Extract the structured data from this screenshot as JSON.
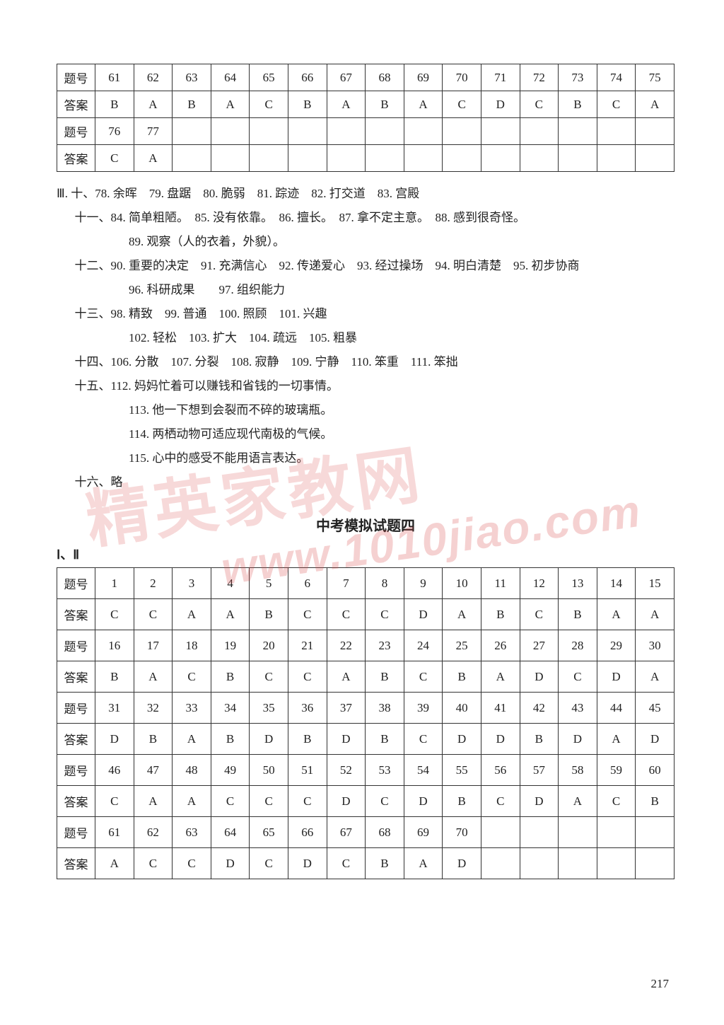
{
  "labels": {
    "question_no": "题号",
    "answer": "答案"
  },
  "table1": {
    "row1_nums": [
      "61",
      "62",
      "63",
      "64",
      "65",
      "66",
      "67",
      "68",
      "69",
      "70",
      "71",
      "72",
      "73",
      "74",
      "75"
    ],
    "row1_ans": [
      "B",
      "A",
      "B",
      "A",
      "C",
      "B",
      "A",
      "B",
      "A",
      "C",
      "D",
      "C",
      "B",
      "C",
      "A"
    ],
    "row2_nums": [
      "76",
      "77",
      "",
      "",
      "",
      "",
      "",
      "",
      "",
      "",
      "",
      "",
      "",
      "",
      ""
    ],
    "row2_ans": [
      "C",
      "A",
      "",
      "",
      "",
      "",
      "",
      "",
      "",
      "",
      "",
      "",
      "",
      "",
      ""
    ]
  },
  "text_block": {
    "l1": "Ⅲ. 十、78. 余晖　79. 盘踞　80. 脆弱　81. 踪迹　82. 打交道　83. 宫殿",
    "l2": "十一、84. 简单粗陋。　85. 没有依靠。　86. 擅长。　87. 拿不定主意。　88. 感到很奇怪。",
    "l3": "89. 观察（人的衣着，外貌）。",
    "l4": "十二、90. 重要的决定　91. 充满信心　92. 传递爱心　93. 经过操场　94. 明白清楚　95. 初步协商",
    "l5": "96. 科研成果　　97. 组织能力",
    "l6": "十三、98. 精致　99. 普通　100. 照顾　101. 兴趣",
    "l7": "102. 轻松　103. 扩大　104. 疏远　105. 粗暴",
    "l8": "十四、106. 分散　107. 分裂　108. 寂静　109. 宁静　110. 笨重　111. 笨拙",
    "l9": "十五、112. 妈妈忙着可以赚钱和省钱的一切事情。",
    "l10": "113. 他一下想到会裂而不碎的玻璃瓶。",
    "l11": "114. 两栖动物可适应现代南极的气候。",
    "l12": "115. 心中的感受不能用语言表达。",
    "l13": "十六、略"
  },
  "heading2": "中考模拟试题四",
  "roman2": "Ⅰ、Ⅱ",
  "table2": {
    "rows": [
      {
        "nums": [
          "1",
          "2",
          "3",
          "4",
          "5",
          "6",
          "7",
          "8",
          "9",
          "10",
          "11",
          "12",
          "13",
          "14",
          "15"
        ],
        "ans": [
          "C",
          "C",
          "A",
          "A",
          "B",
          "C",
          "C",
          "C",
          "D",
          "A",
          "B",
          "C",
          "B",
          "A",
          "A"
        ]
      },
      {
        "nums": [
          "16",
          "17",
          "18",
          "19",
          "20",
          "21",
          "22",
          "23",
          "24",
          "25",
          "26",
          "27",
          "28",
          "29",
          "30"
        ],
        "ans": [
          "B",
          "A",
          "C",
          "B",
          "C",
          "C",
          "A",
          "B",
          "C",
          "B",
          "A",
          "D",
          "C",
          "D",
          "A"
        ]
      },
      {
        "nums": [
          "31",
          "32",
          "33",
          "34",
          "35",
          "36",
          "37",
          "38",
          "39",
          "40",
          "41",
          "42",
          "43",
          "44",
          "45"
        ],
        "ans": [
          "D",
          "B",
          "A",
          "B",
          "D",
          "B",
          "D",
          "B",
          "C",
          "D",
          "D",
          "B",
          "D",
          "A",
          "D"
        ]
      },
      {
        "nums": [
          "46",
          "47",
          "48",
          "49",
          "50",
          "51",
          "52",
          "53",
          "54",
          "55",
          "56",
          "57",
          "58",
          "59",
          "60"
        ],
        "ans": [
          "C",
          "A",
          "A",
          "C",
          "C",
          "C",
          "D",
          "C",
          "D",
          "B",
          "C",
          "D",
          "A",
          "C",
          "B"
        ]
      },
      {
        "nums": [
          "61",
          "62",
          "63",
          "64",
          "65",
          "66",
          "67",
          "68",
          "69",
          "70",
          "",
          "",
          "",
          "",
          ""
        ],
        "ans": [
          "A",
          "C",
          "C",
          "D",
          "C",
          "D",
          "C",
          "B",
          "A",
          "D",
          "",
          "",
          "",
          "",
          ""
        ]
      }
    ]
  },
  "page_number": "217",
  "watermark_text": "www.1010jiao.com",
  "watermark_cn": "精英家教网"
}
